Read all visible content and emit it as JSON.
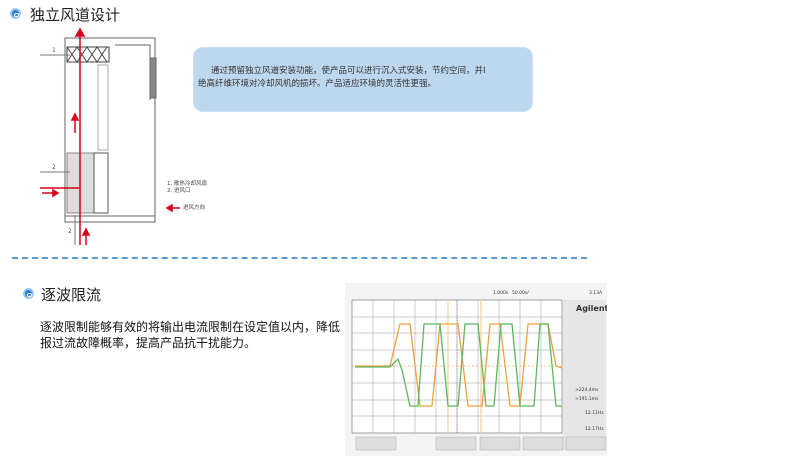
{
  "section1": {
    "title": "独立风道设计",
    "note_line1": "通过预留独立风道安装功能，使产品可以进行沉入式安装，节约空间，并I",
    "note_line2": "绝高纤维环境对冷却风机的损坏。产品适应环境的灵活性更强。",
    "diagram": {
      "label_1": "1",
      "label_2a": "2",
      "label_2b": "2",
      "legend_1": "1. 散热冷却风扇",
      "legend_2": "2. 进风口",
      "legend_arrow": "进风方向",
      "arrow_color": "#d9001b"
    }
  },
  "section2": {
    "title": "逐波限流",
    "description_line1": "逐波限制能够有效的将输出电流限制在设定值以内，降低",
    "description_line2": "报过流故障概率，提高产品抗干扰能力。",
    "scope": {
      "brand": "Agilent",
      "timebase": "1.000s",
      "scale": "50.00s/",
      "trigger": "3.13A",
      "freq1": "12.11Hz",
      "freq2": "12.17Hz",
      "meas1": ">224.4ms",
      "meas2": ">191.1ms",
      "ch1_color": "#f0a040",
      "ch2_color": "#5cb85c"
    }
  },
  "colors": {
    "accent": "#2f7fd6",
    "note_bg": "#bdd7ee",
    "divider": "#5b9bd5"
  }
}
